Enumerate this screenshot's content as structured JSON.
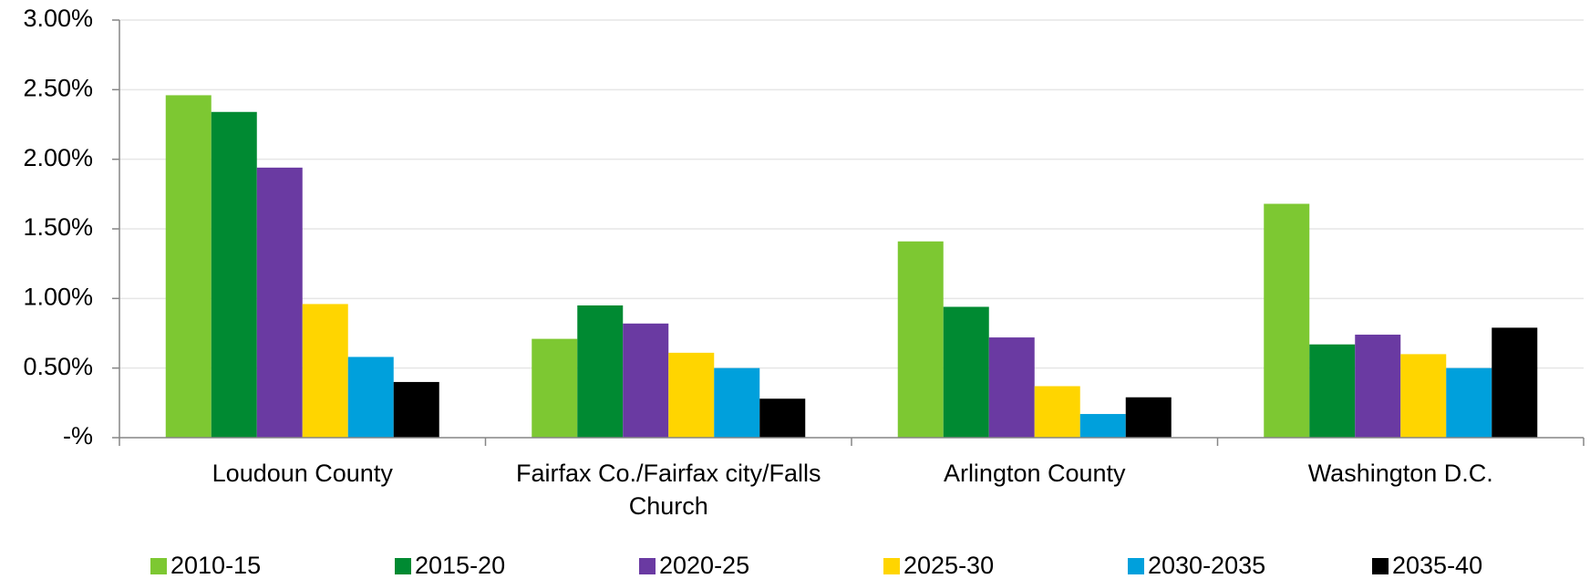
{
  "chart_data": {
    "type": "bar",
    "categories": [
      "Loudoun County",
      "Fairfax Co./Fairfax city/Falls Church",
      "Arlington County",
      "Washington D.C."
    ],
    "series": [
      {
        "name": "2010-15",
        "color": "#7dc832",
        "values": [
          2.46,
          0.71,
          1.41,
          1.68
        ]
      },
      {
        "name": "2015-20",
        "color": "#008a32",
        "values": [
          2.34,
          0.95,
          0.94,
          0.67
        ]
      },
      {
        "name": "2020-25",
        "color": "#6a3aa2",
        "values": [
          1.94,
          0.82,
          0.72,
          0.74
        ]
      },
      {
        "name": "2025-30",
        "color": "#ffd500",
        "values": [
          0.96,
          0.61,
          0.37,
          0.6
        ]
      },
      {
        "name": "2030-2035",
        "color": "#00a0dc",
        "values": [
          0.58,
          0.5,
          0.17,
          0.5
        ]
      },
      {
        "name": "2035-40",
        "color": "#000000",
        "values": [
          0.4,
          0.28,
          0.29,
          0.79
        ]
      }
    ],
    "ylim": [
      0,
      3
    ],
    "yticks": [
      {
        "value": 0,
        "label": "-%"
      },
      {
        "value": 0.5,
        "label": "0.50%"
      },
      {
        "value": 1,
        "label": "1.00%"
      },
      {
        "value": 1.5,
        "label": "1.50%"
      },
      {
        "value": 2,
        "label": "2.00%"
      },
      {
        "value": 2.5,
        "label": "2.50%"
      },
      {
        "value": 3,
        "label": "3.00%"
      }
    ],
    "grid": true,
    "legend": "bottom"
  }
}
